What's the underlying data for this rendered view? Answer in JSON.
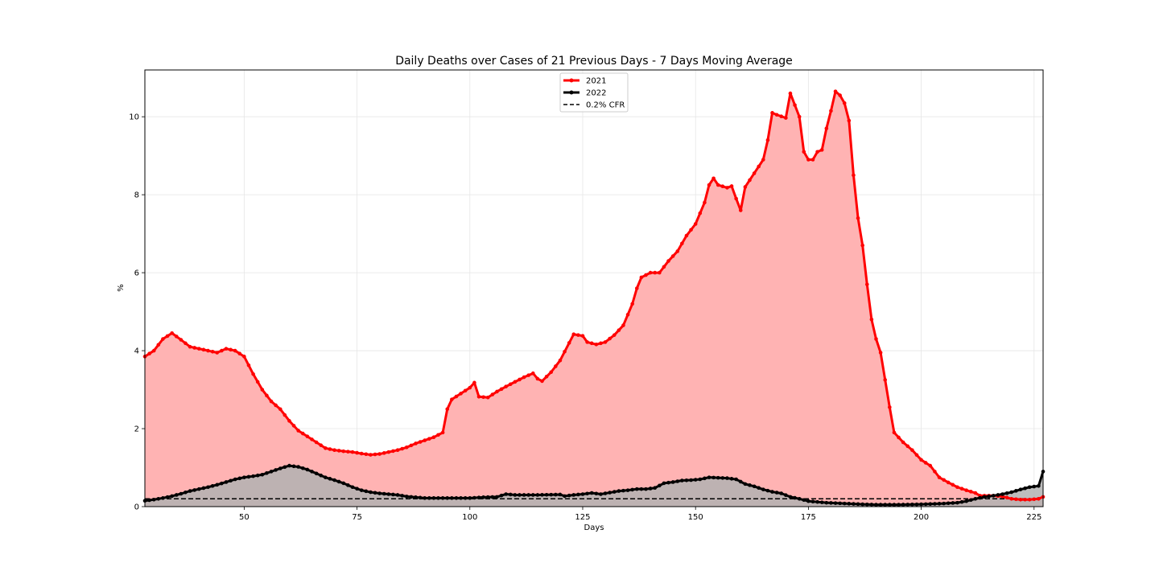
{
  "chart_data": {
    "type": "line",
    "title": "Daily Deaths over Cases of 21 Previous Days - 7 Days Moving Average",
    "xlabel": "Days",
    "ylabel": "%",
    "xlim": [
      28,
      227
    ],
    "ylim": [
      0,
      11.2
    ],
    "x_ticks": [
      50,
      75,
      100,
      125,
      150,
      175,
      200,
      225
    ],
    "y_ticks": [
      0,
      2,
      4,
      6,
      8,
      10
    ],
    "grid": true,
    "legend_position": "top-center",
    "series": [
      {
        "name": "2021",
        "color": "#ff0000",
        "fill_color": "#ffb3b3",
        "marker": "circle",
        "points": [
          [
            28,
            3.85
          ],
          [
            30,
            4.0
          ],
          [
            32,
            4.3
          ],
          [
            34,
            4.45
          ],
          [
            36,
            4.28
          ],
          [
            38,
            4.1
          ],
          [
            40,
            4.05
          ],
          [
            42,
            4.0
          ],
          [
            44,
            3.95
          ],
          [
            46,
            4.05
          ],
          [
            48,
            4.0
          ],
          [
            50,
            3.85
          ],
          [
            52,
            3.4
          ],
          [
            54,
            3.0
          ],
          [
            56,
            2.7
          ],
          [
            58,
            2.5
          ],
          [
            60,
            2.2
          ],
          [
            62,
            1.95
          ],
          [
            64,
            1.8
          ],
          [
            66,
            1.65
          ],
          [
            68,
            1.5
          ],
          [
            70,
            1.45
          ],
          [
            72,
            1.42
          ],
          [
            74,
            1.4
          ],
          [
            76,
            1.36
          ],
          [
            78,
            1.33
          ],
          [
            80,
            1.35
          ],
          [
            82,
            1.4
          ],
          [
            84,
            1.45
          ],
          [
            86,
            1.52
          ],
          [
            88,
            1.62
          ],
          [
            90,
            1.7
          ],
          [
            92,
            1.78
          ],
          [
            94,
            1.9
          ],
          [
            95,
            2.5
          ],
          [
            96,
            2.75
          ],
          [
            98,
            2.9
          ],
          [
            100,
            3.05
          ],
          [
            101,
            3.18
          ],
          [
            102,
            2.82
          ],
          [
            104,
            2.8
          ],
          [
            106,
            2.95
          ],
          [
            108,
            3.08
          ],
          [
            110,
            3.2
          ],
          [
            112,
            3.32
          ],
          [
            114,
            3.42
          ],
          [
            115,
            3.28
          ],
          [
            116,
            3.22
          ],
          [
            118,
            3.45
          ],
          [
            120,
            3.75
          ],
          [
            122,
            4.2
          ],
          [
            123,
            4.42
          ],
          [
            125,
            4.38
          ],
          [
            126,
            4.22
          ],
          [
            128,
            4.16
          ],
          [
            130,
            4.22
          ],
          [
            132,
            4.4
          ],
          [
            134,
            4.65
          ],
          [
            136,
            5.2
          ],
          [
            137,
            5.6
          ],
          [
            138,
            5.88
          ],
          [
            140,
            6.0
          ],
          [
            142,
            6.0
          ],
          [
            144,
            6.3
          ],
          [
            146,
            6.55
          ],
          [
            148,
            6.95
          ],
          [
            150,
            7.25
          ],
          [
            152,
            7.8
          ],
          [
            153,
            8.25
          ],
          [
            154,
            8.42
          ],
          [
            155,
            8.25
          ],
          [
            157,
            8.18
          ],
          [
            158,
            8.22
          ],
          [
            159,
            7.9
          ],
          [
            160,
            7.6
          ],
          [
            161,
            8.2
          ],
          [
            163,
            8.55
          ],
          [
            165,
            8.9
          ],
          [
            166,
            9.4
          ],
          [
            167,
            10.1
          ],
          [
            168,
            10.05
          ],
          [
            170,
            9.97
          ],
          [
            171,
            10.6
          ],
          [
            172,
            10.3
          ],
          [
            173,
            10.0
          ],
          [
            174,
            9.1
          ],
          [
            175,
            8.9
          ],
          [
            176,
            8.9
          ],
          [
            177,
            9.1
          ],
          [
            178,
            9.15
          ],
          [
            179,
            9.7
          ],
          [
            180,
            10.15
          ],
          [
            181,
            10.65
          ],
          [
            182,
            10.55
          ],
          [
            183,
            10.35
          ],
          [
            184,
            9.9
          ],
          [
            185,
            8.5
          ],
          [
            186,
            7.4
          ],
          [
            187,
            6.7
          ],
          [
            188,
            5.7
          ],
          [
            189,
            4.8
          ],
          [
            190,
            4.3
          ],
          [
            191,
            3.95
          ],
          [
            192,
            3.25
          ],
          [
            193,
            2.55
          ],
          [
            194,
            1.9
          ],
          [
            196,
            1.65
          ],
          [
            198,
            1.45
          ],
          [
            200,
            1.2
          ],
          [
            202,
            1.05
          ],
          [
            204,
            0.75
          ],
          [
            206,
            0.62
          ],
          [
            208,
            0.5
          ],
          [
            210,
            0.42
          ],
          [
            212,
            0.35
          ],
          [
            213,
            0.28
          ],
          [
            216,
            0.28
          ],
          [
            218,
            0.26
          ],
          [
            220,
            0.2
          ],
          [
            222,
            0.18
          ],
          [
            224,
            0.18
          ],
          [
            226,
            0.2
          ],
          [
            227,
            0.25
          ]
        ]
      },
      {
        "name": "2022",
        "color": "#000000",
        "fill_color": "#b2b2b2",
        "marker": "circle",
        "points": [
          [
            28,
            0.15
          ],
          [
            30,
            0.18
          ],
          [
            32,
            0.22
          ],
          [
            34,
            0.27
          ],
          [
            36,
            0.33
          ],
          [
            38,
            0.4
          ],
          [
            40,
            0.45
          ],
          [
            42,
            0.5
          ],
          [
            44,
            0.56
          ],
          [
            46,
            0.63
          ],
          [
            48,
            0.7
          ],
          [
            50,
            0.75
          ],
          [
            52,
            0.78
          ],
          [
            54,
            0.82
          ],
          [
            56,
            0.9
          ],
          [
            58,
            0.98
          ],
          [
            60,
            1.05
          ],
          [
            62,
            1.02
          ],
          [
            64,
            0.95
          ],
          [
            66,
            0.85
          ],
          [
            68,
            0.75
          ],
          [
            70,
            0.68
          ],
          [
            72,
            0.6
          ],
          [
            74,
            0.5
          ],
          [
            76,
            0.42
          ],
          [
            78,
            0.37
          ],
          [
            80,
            0.34
          ],
          [
            82,
            0.32
          ],
          [
            84,
            0.3
          ],
          [
            86,
            0.26
          ],
          [
            88,
            0.24
          ],
          [
            90,
            0.22
          ],
          [
            92,
            0.22
          ],
          [
            95,
            0.22
          ],
          [
            100,
            0.22
          ],
          [
            103,
            0.24
          ],
          [
            106,
            0.25
          ],
          [
            108,
            0.32
          ],
          [
            110,
            0.3
          ],
          [
            115,
            0.3
          ],
          [
            120,
            0.31
          ],
          [
            121,
            0.27
          ],
          [
            123,
            0.3
          ],
          [
            125,
            0.32
          ],
          [
            127,
            0.35
          ],
          [
            129,
            0.32
          ],
          [
            131,
            0.36
          ],
          [
            133,
            0.4
          ],
          [
            135,
            0.42
          ],
          [
            137,
            0.45
          ],
          [
            139,
            0.45
          ],
          [
            141,
            0.48
          ],
          [
            143,
            0.6
          ],
          [
            145,
            0.63
          ],
          [
            147,
            0.67
          ],
          [
            149,
            0.68
          ],
          [
            151,
            0.7
          ],
          [
            153,
            0.75
          ],
          [
            155,
            0.74
          ],
          [
            157,
            0.73
          ],
          [
            159,
            0.7
          ],
          [
            161,
            0.58
          ],
          [
            163,
            0.52
          ],
          [
            165,
            0.44
          ],
          [
            167,
            0.38
          ],
          [
            169,
            0.34
          ],
          [
            171,
            0.25
          ],
          [
            173,
            0.2
          ],
          [
            175,
            0.14
          ],
          [
            177,
            0.12
          ],
          [
            179,
            0.1
          ],
          [
            181,
            0.09
          ],
          [
            183,
            0.08
          ],
          [
            185,
            0.07
          ],
          [
            187,
            0.06
          ],
          [
            190,
            0.05
          ],
          [
            195,
            0.05
          ],
          [
            200,
            0.06
          ],
          [
            205,
            0.08
          ],
          [
            208,
            0.1
          ],
          [
            210,
            0.14
          ],
          [
            212,
            0.2
          ],
          [
            214,
            0.25
          ],
          [
            216,
            0.28
          ],
          [
            218,
            0.32
          ],
          [
            220,
            0.37
          ],
          [
            222,
            0.44
          ],
          [
            224,
            0.5
          ],
          [
            226,
            0.53
          ],
          [
            227,
            0.9
          ]
        ]
      },
      {
        "name": "0.2% CFR",
        "color": "#000000",
        "style": "dashed",
        "points": [
          [
            28,
            0.2
          ],
          [
            227,
            0.2
          ]
        ]
      }
    ]
  }
}
